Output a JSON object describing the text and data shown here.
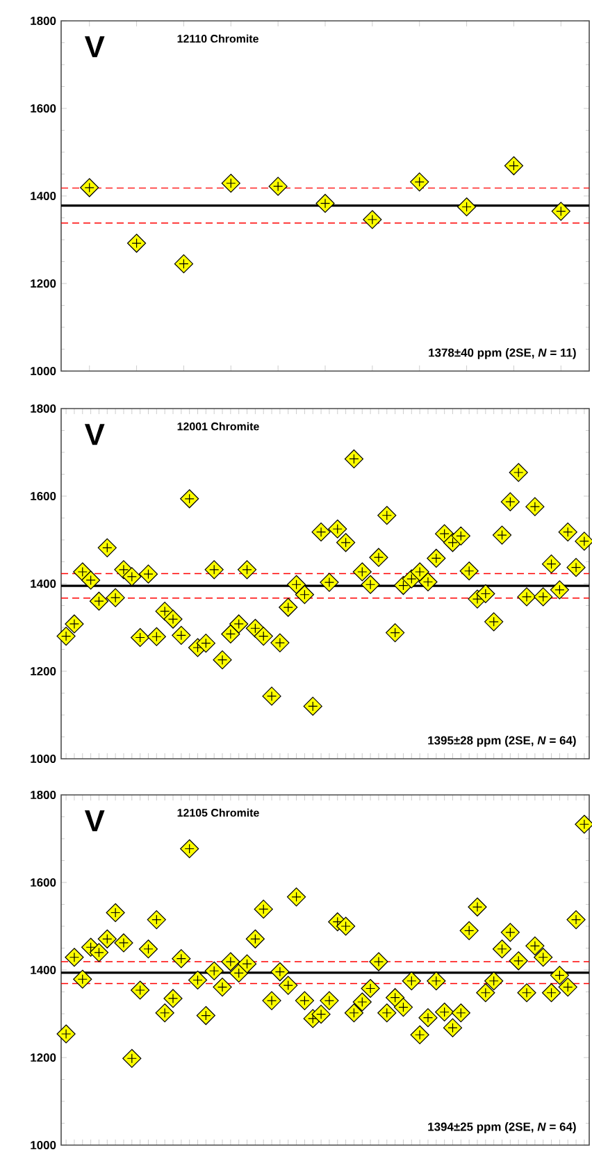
{
  "chart_data": [
    {
      "type": "scatter",
      "marker": "diamond",
      "tick_labels": "y",
      "grid": false,
      "categories": [
        null,
        null,
        null,
        null,
        null,
        null,
        null,
        null,
        null,
        null,
        null
      ],
      "series": [
        {
          "color": "#ffff00",
          "values": [
            1419,
            1292,
            1245,
            1429,
            1422,
            1383,
            1346,
            1432,
            1375,
            1469,
            1365
          ]
        }
      ],
      "ylim": [
        1000,
        1800
      ],
      "yticks": [
        1000,
        1200,
        1400,
        1600,
        1800
      ],
      "ref_lines": [
        {
          "axis": "y",
          "value": 1378,
          "color": "#000000",
          "line_style": "solid"
        },
        {
          "axis": "y",
          "value": 1418,
          "color": "#ff0000",
          "line_style": "dashed"
        },
        {
          "axis": "y",
          "value": 1338,
          "color": "#ff0000",
          "line_style": "dashed"
        }
      ],
      "annotations": [
        "V",
        "12110 Chromite",
        "1378±40 ppm (2SE, *N* = 11)"
      ]
    },
    {
      "type": "scatter",
      "marker": "diamond",
      "tick_labels": "y",
      "grid": false,
      "categories": [
        null,
        null,
        null,
        null,
        null,
        null,
        null,
        null,
        null,
        null,
        null,
        null,
        null,
        null,
        null,
        null,
        null,
        null,
        null,
        null,
        null,
        null,
        null,
        null,
        null,
        null,
        null,
        null,
        null,
        null,
        null,
        null,
        null,
        null,
        null,
        null,
        null,
        null,
        null,
        null,
        null,
        null,
        null,
        null,
        null,
        null,
        null,
        null,
        null,
        null,
        null,
        null,
        null,
        null,
        null,
        null,
        null,
        null,
        null,
        null,
        null,
        null,
        null,
        null
      ],
      "series": [
        {
          "color": "#ffff00",
          "values": [
            1280,
            1308,
            1427,
            1408,
            1360,
            1482,
            1368,
            1432,
            1416,
            1277,
            1422,
            1279,
            1337,
            1319,
            1282,
            1594,
            1254,
            1264,
            1432,
            1226,
            1285,
            1308,
            1432,
            1298,
            1280,
            1143,
            1265,
            1346,
            1398,
            1375,
            1120,
            1518,
            1403,
            1525,
            1494,
            1685,
            1427,
            1398,
            1460,
            1556,
            1288,
            1396,
            1411,
            1427,
            1404,
            1458,
            1514,
            1494,
            1509,
            1429,
            1365,
            1377,
            1313,
            1511,
            1587,
            1654,
            1370,
            1576,
            1370,
            1445,
            1386,
            1518,
            1437,
            1497
          ]
        }
      ],
      "ylim": [
        1000,
        1800
      ],
      "yticks": [
        1000,
        1200,
        1400,
        1600,
        1800
      ],
      "ref_lines": [
        {
          "axis": "y",
          "value": 1395,
          "color": "#000000",
          "line_style": "solid"
        },
        {
          "axis": "y",
          "value": 1423,
          "color": "#ff0000",
          "line_style": "dashed"
        },
        {
          "axis": "y",
          "value": 1367,
          "color": "#ff0000",
          "line_style": "dashed"
        }
      ],
      "annotations": [
        "V",
        "12001 Chromite",
        "1395±28 ppm (2SE, *N* = 64)"
      ]
    },
    {
      "type": "scatter",
      "marker": "diamond",
      "tick_labels": "y",
      "grid": false,
      "categories": [
        null,
        null,
        null,
        null,
        null,
        null,
        null,
        null,
        null,
        null,
        null,
        null,
        null,
        null,
        null,
        null,
        null,
        null,
        null,
        null,
        null,
        null,
        null,
        null,
        null,
        null,
        null,
        null,
        null,
        null,
        null,
        null,
        null,
        null,
        null,
        null,
        null,
        null,
        null,
        null,
        null,
        null,
        null,
        null,
        null,
        null,
        null,
        null,
        null,
        null,
        null,
        null,
        null,
        null,
        null,
        null,
        null,
        null,
        null,
        null,
        null,
        null,
        null,
        null
      ],
      "series": [
        {
          "color": "#ffff00",
          "values": [
            1254,
            1429,
            1379,
            1452,
            1440,
            1471,
            1531,
            1462,
            1198,
            1354,
            1448,
            1515,
            1302,
            1335,
            1426,
            1677,
            1377,
            1296,
            1398,
            1361,
            1419,
            1393,
            1414,
            1471,
            1539,
            1330,
            1396,
            1365,
            1567,
            1330,
            1289,
            1299,
            1330,
            1510,
            1500,
            1302,
            1327,
            1358,
            1419,
            1302,
            1337,
            1315,
            1375,
            1252,
            1291,
            1375,
            1304,
            1268,
            1302,
            1490,
            1544,
            1348,
            1375,
            1448,
            1486,
            1421,
            1348,
            1455,
            1429,
            1348,
            1388,
            1361,
            1515,
            1733
          ]
        }
      ],
      "ylim": [
        1000,
        1800
      ],
      "yticks": [
        1000,
        1200,
        1400,
        1600,
        1800
      ],
      "ref_lines": [
        {
          "axis": "y",
          "value": 1394,
          "color": "#000000",
          "line_style": "solid"
        },
        {
          "axis": "y",
          "value": 1419,
          "color": "#ff0000",
          "line_style": "dashed"
        },
        {
          "axis": "y",
          "value": 1369,
          "color": "#ff0000",
          "line_style": "dashed"
        }
      ],
      "annotations": [
        "V",
        "12105 Chromite",
        "1394±25 ppm (2SE, *N* = 64)"
      ]
    }
  ]
}
